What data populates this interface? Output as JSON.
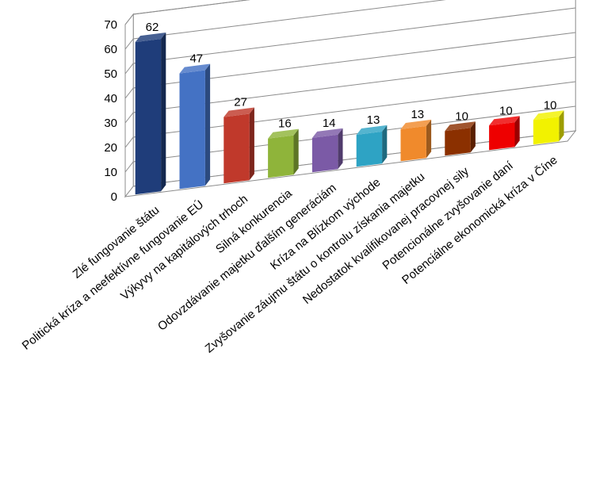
{
  "chart_data": {
    "type": "bar",
    "categories": [
      "Zlé fungovanie štátu",
      "Politická kríza a neefektívne fungovanie EÚ",
      "Výkyvy na kapitálových trhoch",
      "Silná konkurencia",
      "Odovzdávanie majetku ďalším generáciám",
      "Kríza na Blízkom východe",
      "Zvyšovanie záujmu štátu o kontrolu získania majetku",
      "Nedostatok kvalifikovanej pracovnej sily",
      "Potencionálne zvyšovanie daní",
      "Potenciálne ekonomická kríza v Číne"
    ],
    "values": [
      62,
      47,
      27,
      16,
      14,
      13,
      13,
      10,
      10,
      10
    ],
    "data_labels": [
      "62",
      "47",
      "27",
      "16",
      "14",
      "13",
      "13",
      "10",
      "10",
      "10"
    ],
    "y_ticks": [
      "0",
      "10",
      "20",
      "30",
      "40",
      "50",
      "60",
      "70"
    ],
    "ylim": [
      0,
      70
    ],
    "grid": true,
    "three_d": true,
    "colors": [
      "#1f3d7a",
      "#4472c4",
      "#c0392b",
      "#8fb43a",
      "#7b5aa6",
      "#2ea3c4",
      "#f08a2c",
      "#8b3000",
      "#ee0000",
      "#f2f200"
    ]
  }
}
